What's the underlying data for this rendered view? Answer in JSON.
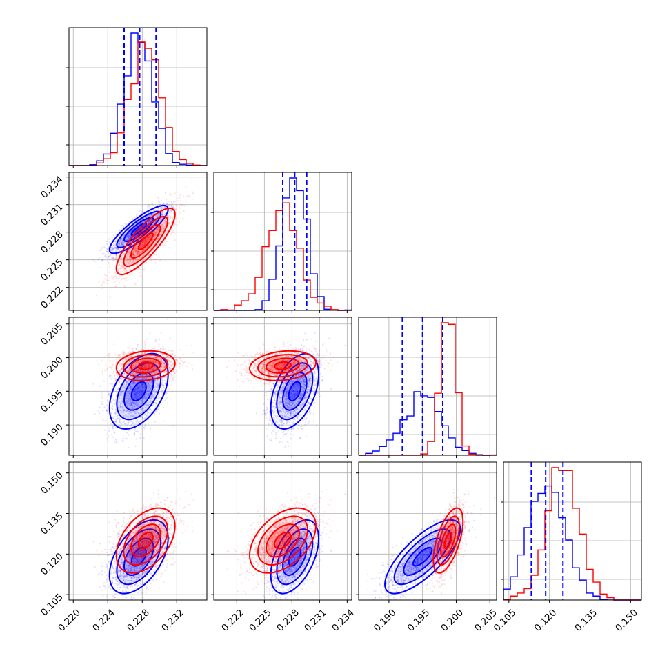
{
  "chart_data": {
    "type": "corner",
    "grid": true,
    "colors": {
      "series_a": "#0000ff",
      "series_b": "#ff0000",
      "quantile_lines": "#0000ff"
    },
    "parameters": [
      {
        "range": [
          0.2195,
          0.2355
        ],
        "ticks": [
          0.22,
          0.224,
          0.228,
          0.232
        ],
        "ticklabels": [
          "0.220",
          "0.224",
          "0.228",
          "0.232"
        ]
      },
      {
        "range": [
          0.2195,
          0.2345
        ],
        "ticks": [
          0.222,
          0.225,
          0.228,
          0.231,
          0.234
        ],
        "ticklabels": [
          "0.222",
          "0.225",
          "0.228",
          "0.231",
          "0.234"
        ]
      },
      {
        "range": [
          0.1855,
          0.206
        ],
        "ticks": [
          0.19,
          0.195,
          0.2,
          0.205
        ],
        "ticklabels": [
          "0.190",
          "0.195",
          "0.200",
          "0.205"
        ]
      },
      {
        "range": [
          0.103,
          0.154
        ],
        "ticks": [
          0.105,
          0.12,
          0.135,
          0.15
        ],
        "ticklabels": [
          "0.105",
          "0.120",
          "0.135",
          "0.150"
        ]
      }
    ],
    "series": [
      {
        "color": "#0000ff",
        "mean": [
          0.2276,
          0.2283,
          0.195,
          0.119
        ],
        "sd": [
          0.0017,
          0.0013,
          0.0028,
          0.0068
        ],
        "corr": [
          [
            1,
            0.85,
            0.45,
            0.5
          ],
          [
            0.85,
            1,
            0.45,
            0.5
          ],
          [
            0.45,
            0.45,
            1,
            0.75
          ],
          [
            0.5,
            0.5,
            0.75,
            1
          ]
        ]
      },
      {
        "color": "#ff0000",
        "mean": [
          0.2284,
          0.227,
          0.1988,
          0.125
        ],
        "sd": [
          0.0017,
          0.0018,
          0.0011,
          0.006
        ],
        "corr": [
          [
            1,
            0.82,
            0.15,
            0.45
          ],
          [
            0.82,
            1,
            0.2,
            0.45
          ],
          [
            0.15,
            0.2,
            1,
            0.6
          ],
          [
            0.45,
            0.45,
            0.6,
            1
          ]
        ]
      }
    ],
    "quantile_lines": [
      [
        0.2259,
        0.2277,
        0.2296
      ],
      [
        0.227,
        0.2283,
        0.2296
      ],
      [
        0.192,
        0.195,
        0.198
      ],
      [
        0.1133,
        0.1186,
        0.125
      ]
    ]
  }
}
